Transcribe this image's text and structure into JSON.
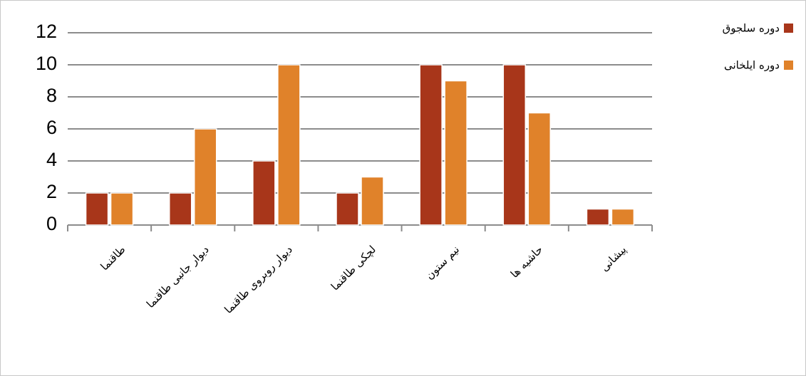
{
  "chart_data": {
    "type": "bar",
    "categories": [
      "طاقنما",
      "دیوار جانبی طاقنما",
      "دیوار روبروی طاقنما",
      "لچکی طاقنما",
      "نیم ستون",
      "حاشیه ها",
      "پیشانی"
    ],
    "series": [
      {
        "name": "دوره سلجوق",
        "color": "#a8361a",
        "values": [
          2,
          2,
          4,
          2,
          10,
          10,
          1
        ]
      },
      {
        "name": "دوره ایلخانی",
        "color": "#e0822a",
        "values": [
          2,
          6,
          10,
          3,
          9,
          7,
          1
        ]
      }
    ],
    "ylim": [
      0,
      12
    ],
    "yticks": [
      0,
      2,
      4,
      6,
      8,
      10,
      12
    ],
    "grid": true,
    "legend": "top-right"
  }
}
